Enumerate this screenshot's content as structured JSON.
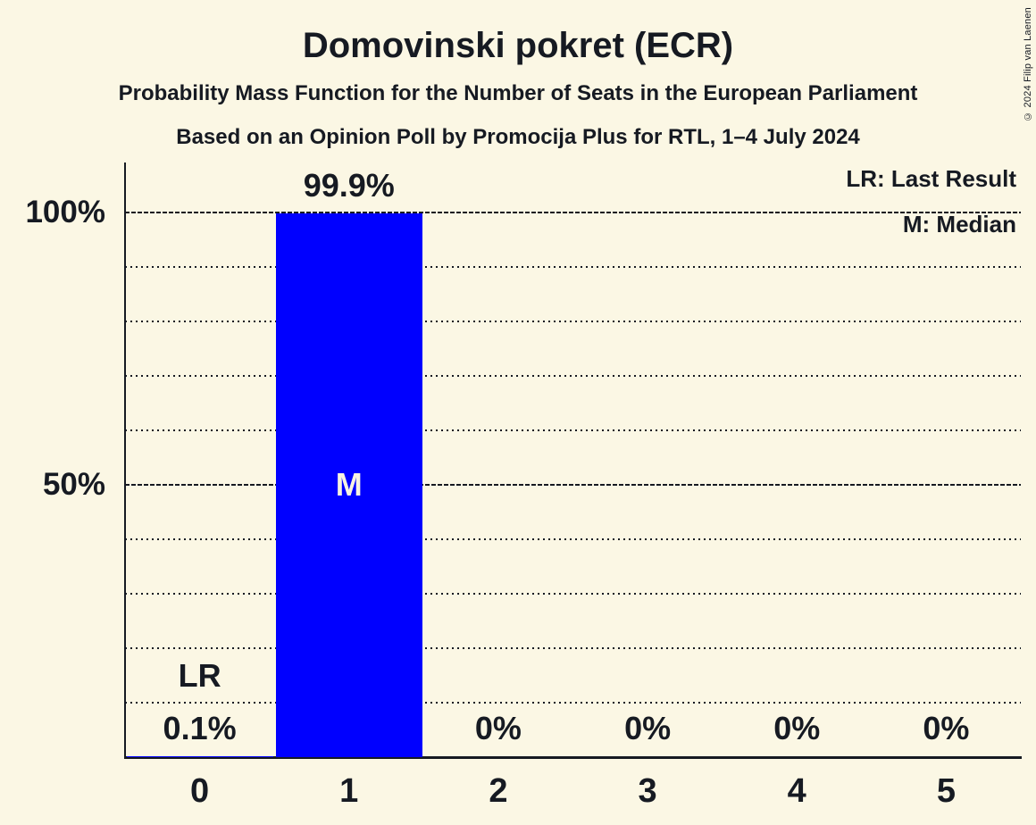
{
  "title": "Domovinski pokret (ECR)",
  "subtitle": "Probability Mass Function for the Number of Seats in the European Parliament",
  "source_line": "Based on an Opinion Poll by Promocija Plus for RTL, 1–4 July 2024",
  "copyright": "© 2024 Filip van Laenen",
  "legend": {
    "last_result": "LR: Last Result",
    "median": "M: Median"
  },
  "colors": {
    "background": "#FBF7E4",
    "text": "#161A22",
    "bar": "#0000FF",
    "bar_label": "#F7F3E1"
  },
  "chart_data": {
    "type": "bar",
    "title": "Domovinski pokret (ECR)",
    "categories": [
      "0",
      "1",
      "2",
      "3",
      "4",
      "5"
    ],
    "values": [
      0.1,
      99.9,
      0,
      0,
      0,
      0
    ],
    "value_labels": [
      "0.1%",
      "99.9%",
      "0%",
      "0%",
      "0%",
      "0%"
    ],
    "xlabel": "",
    "ylabel": "",
    "ylim": [
      0,
      109
    ],
    "yticks": [
      {
        "value": 100,
        "label": "100%"
      },
      {
        "value": 50,
        "label": "50%"
      }
    ],
    "major_gridlines_pct": [
      100,
      50
    ],
    "minor_gridlines_pct": [
      90,
      80,
      70,
      60,
      40,
      30,
      20,
      10
    ],
    "grid": "horizontal, dotted minor / dashed major",
    "legend_position": "top-right",
    "annotations": [
      {
        "label": "LR",
        "meaning": "Last Result",
        "category": "0",
        "at_pct": 15
      },
      {
        "label": "M",
        "meaning": "Median",
        "category": "1",
        "at_pct": 50
      }
    ]
  }
}
